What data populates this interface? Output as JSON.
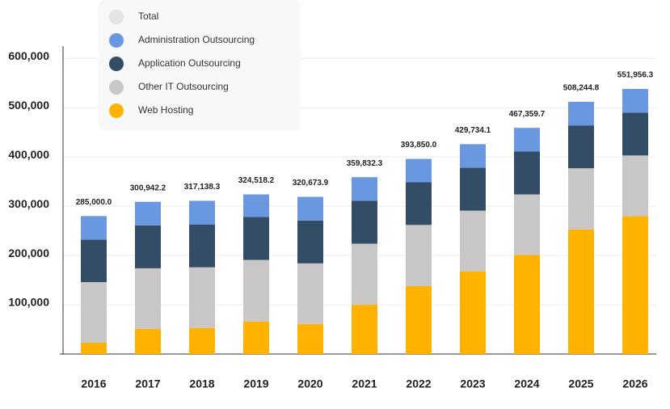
{
  "chart_data": {
    "type": "stacked-bar",
    "categories": [
      "2016",
      "2017",
      "2018",
      "2019",
      "2020",
      "2021",
      "2022",
      "2023",
      "2024",
      "2025",
      "2026"
    ],
    "series": [
      {
        "name": "Total",
        "color": "#e4e4e4",
        "values": [
          285000.0,
          300942.2,
          317138.3,
          324518.2,
          320673.9,
          359832.3,
          393850.0,
          429734.1,
          467359.7,
          508244.8,
          551956.3
        ],
        "value_labels": [
          "285,000.0",
          "300,942.2",
          "317,138.3",
          "324,518.2",
          "320,673.9",
          "359,832.3",
          "393,850.0",
          "429,734.1",
          "467,359.7",
          "508,244.8",
          "551,956.3"
        ]
      },
      {
        "name": "Administration Outsourcing",
        "color": "#6a98e0",
        "values": [
          48000,
          48000,
          48000,
          46000,
          48000,
          48000,
          47000,
          48000,
          48000,
          48000,
          48000
        ]
      },
      {
        "name": "Application Outsourcing",
        "color": "#334d66",
        "values": [
          86000,
          87000,
          87000,
          87000,
          87000,
          87000,
          87000,
          87000,
          87000,
          87000,
          87000
        ]
      },
      {
        "name": "Other IT Outsourcing",
        "color": "#c8c6c7",
        "values": [
          123000,
          123000,
          123000,
          125000,
          123000,
          124000,
          124000,
          123000,
          123000,
          124000,
          123000
        ]
      },
      {
        "name": "Web Hosting",
        "color": "#ffb300",
        "values": [
          23000,
          51000,
          53000,
          66000,
          61000,
          100000,
          138000,
          168000,
          201000,
          253000,
          280000
        ]
      }
    ],
    "ylim": [
      0,
      625000
    ],
    "yticks": [
      {
        "value": 100000,
        "label": "100,000"
      },
      {
        "value": 200000,
        "label": "200,000"
      },
      {
        "value": 300000,
        "label": "300,000"
      },
      {
        "value": 400000,
        "label": "400,000"
      },
      {
        "value": 500000,
        "label": "500,000"
      },
      {
        "value": 600000,
        "label": "600,000"
      }
    ],
    "grid": true
  }
}
